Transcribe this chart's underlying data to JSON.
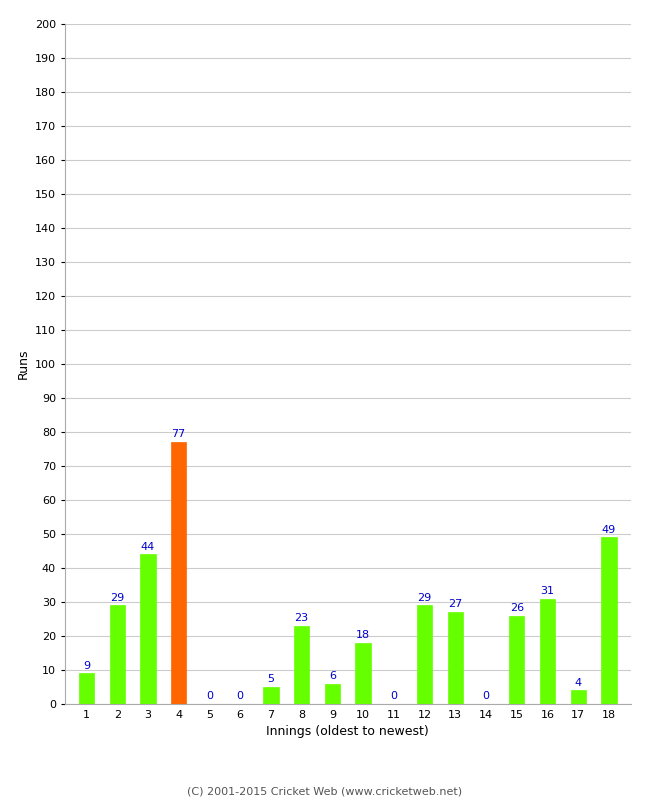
{
  "xlabel": "Innings (oldest to newest)",
  "ylabel": "Runs",
  "categories": [
    1,
    2,
    3,
    4,
    5,
    6,
    7,
    8,
    9,
    10,
    11,
    12,
    13,
    14,
    15,
    16,
    17,
    18
  ],
  "values": [
    9,
    29,
    44,
    77,
    0,
    0,
    5,
    23,
    6,
    18,
    0,
    29,
    27,
    0,
    26,
    31,
    4,
    49
  ],
  "bar_colors": [
    "#66ff00",
    "#66ff00",
    "#66ff00",
    "#ff6600",
    "#66ff00",
    "#66ff00",
    "#66ff00",
    "#66ff00",
    "#66ff00",
    "#66ff00",
    "#66ff00",
    "#66ff00",
    "#66ff00",
    "#66ff00",
    "#66ff00",
    "#66ff00",
    "#66ff00",
    "#66ff00"
  ],
  "ylim": [
    0,
    200
  ],
  "yticks": [
    0,
    10,
    20,
    30,
    40,
    50,
    60,
    70,
    80,
    90,
    100,
    110,
    120,
    130,
    140,
    150,
    160,
    170,
    180,
    190,
    200
  ],
  "label_color": "#0000cc",
  "background_color": "#ffffff",
  "grid_color": "#cccccc",
  "footer": "(C) 2001-2015 Cricket Web (www.cricketweb.net)",
  "bar_width": 0.5
}
